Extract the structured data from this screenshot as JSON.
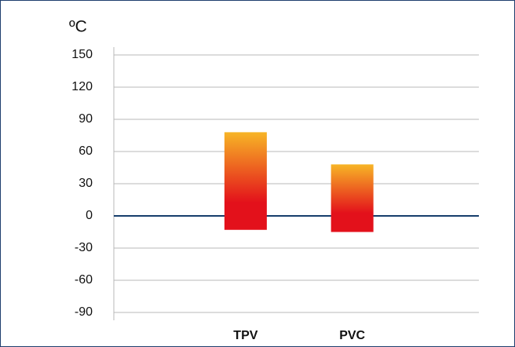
{
  "chart_data": {
    "type": "range_bar",
    "y_label": "ºC",
    "categories": [
      "TPV",
      "PVC"
    ],
    "low": [
      -13,
      -15
    ],
    "high": [
      78,
      48
    ],
    "color_top": "#f7b526",
    "color_bottom": "#e3111b",
    "ylim": [
      -90,
      150
    ],
    "yticks": [
      -90,
      -60,
      -30,
      0,
      30,
      60,
      90,
      120,
      150
    ],
    "grid": true
  }
}
